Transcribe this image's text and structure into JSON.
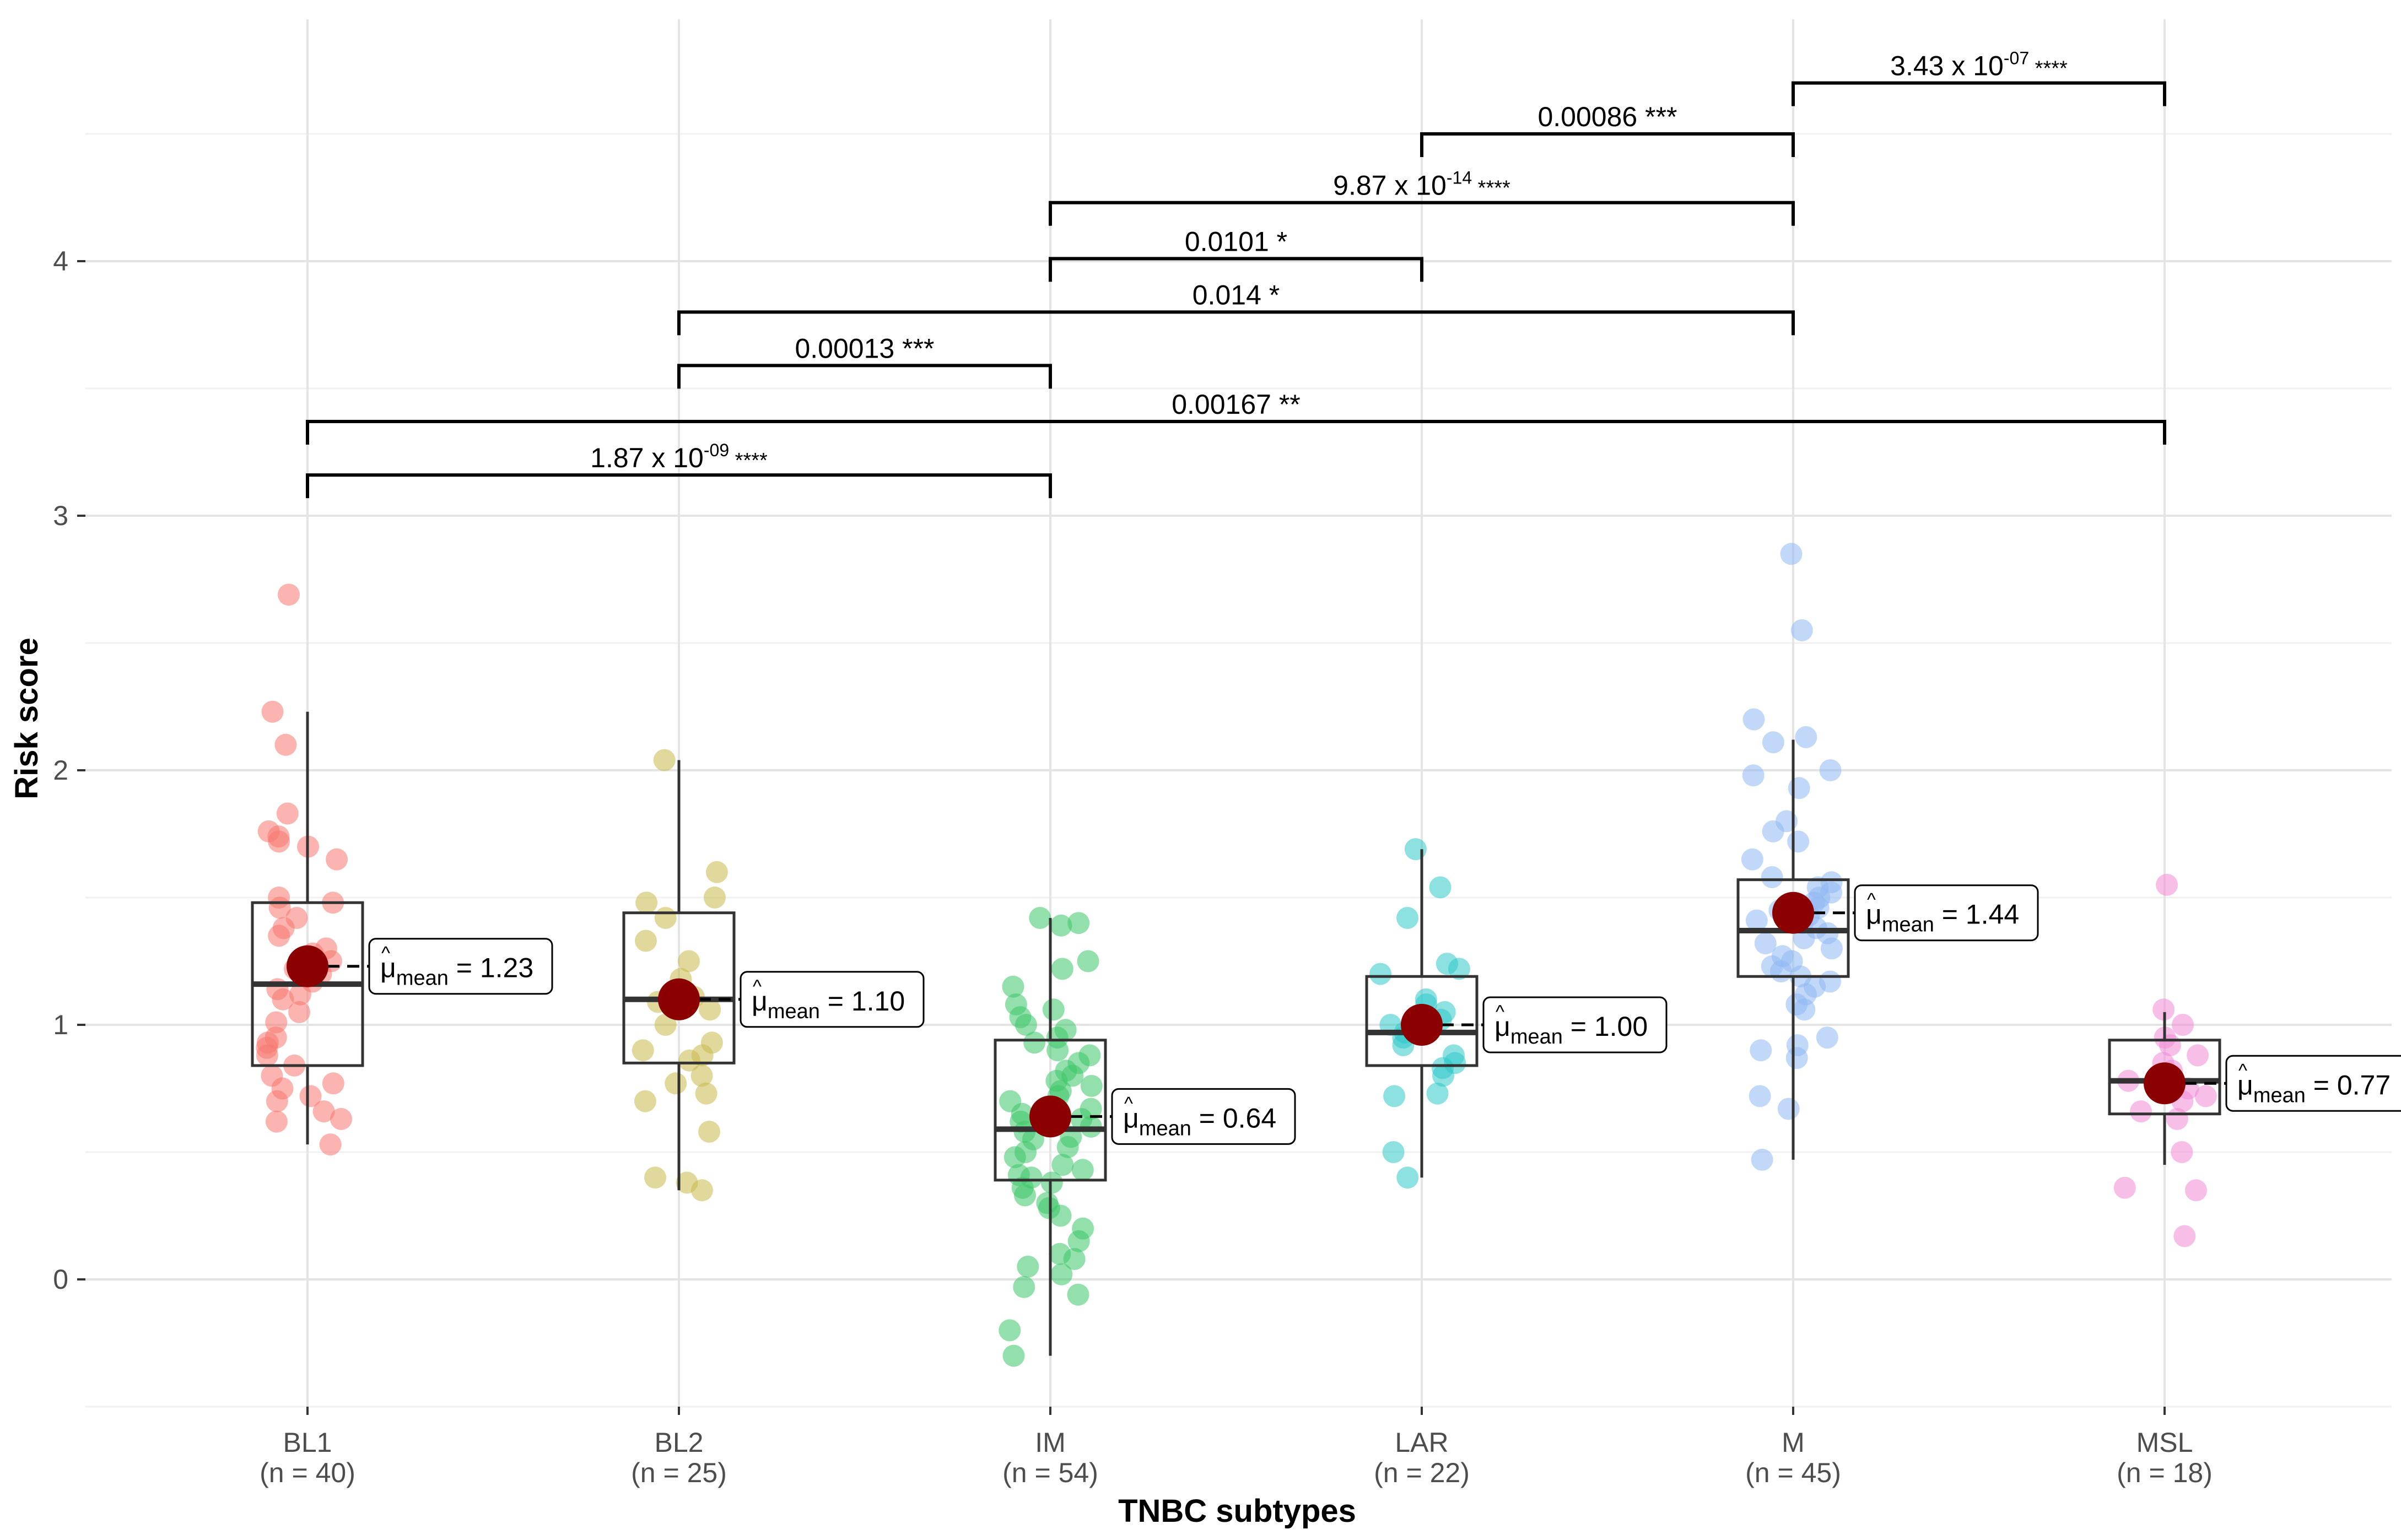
{
  "chart_data": {
    "type": "box",
    "xlabel": "TNBC subtypes",
    "ylabel": "Risk score",
    "ylim": [
      -0.5,
      4.95
    ],
    "yticks": [
      0,
      1,
      2,
      3,
      4
    ],
    "grid": true,
    "mean_prefix": "μ",
    "mean_subscript": "mean",
    "categories": [
      {
        "name": "BL1",
        "n_label": "(n = 40)",
        "color": "#f8766d",
        "box": {
          "q1": 0.84,
          "median": 1.16,
          "q3": 1.48,
          "whisker_low": 0.53,
          "whisker_high": 2.23
        },
        "mean": 1.23,
        "mean_label": "1.23",
        "points": [
          2.69,
          2.23,
          2.1,
          1.83,
          1.76,
          1.74,
          1.72,
          1.7,
          1.65,
          1.5,
          1.48,
          1.46,
          1.42,
          1.38,
          1.35,
          1.3,
          1.28,
          1.25,
          1.22,
          1.2,
          1.17,
          1.14,
          1.12,
          1.1,
          1.05,
          1.01,
          0.95,
          0.93,
          0.91,
          0.88,
          0.84,
          0.8,
          0.77,
          0.75,
          0.72,
          0.7,
          0.66,
          0.63,
          0.62,
          0.53
        ]
      },
      {
        "name": "BL2",
        "n_label": "(n = 25)",
        "color": "#c8b94a",
        "box": {
          "q1": 0.85,
          "median": 1.1,
          "q3": 1.44,
          "whisker_low": 0.35,
          "whisker_high": 2.04
        },
        "mean": 1.1,
        "mean_label": "1.10",
        "points": [
          2.04,
          1.6,
          1.5,
          1.48,
          1.42,
          1.33,
          1.25,
          1.18,
          1.13,
          1.11,
          1.09,
          1.06,
          1.0,
          0.93,
          0.9,
          0.88,
          0.86,
          0.8,
          0.77,
          0.73,
          0.7,
          0.58,
          0.4,
          0.38,
          0.35
        ]
      },
      {
        "name": "IM",
        "n_label": "(n = 54)",
        "color": "#3dc767",
        "box": {
          "q1": 0.39,
          "median": 0.59,
          "q3": 0.94,
          "whisker_low": -0.3,
          "whisker_high": 1.42
        },
        "mean": 0.64,
        "mean_label": "0.64",
        "points": [
          1.42,
          1.4,
          1.39,
          1.25,
          1.22,
          1.15,
          1.08,
          1.06,
          1.03,
          1.0,
          0.98,
          0.95,
          0.93,
          0.9,
          0.88,
          0.85,
          0.82,
          0.8,
          0.78,
          0.76,
          0.74,
          0.72,
          0.7,
          0.67,
          0.65,
          0.63,
          0.62,
          0.6,
          0.58,
          0.56,
          0.55,
          0.52,
          0.5,
          0.48,
          0.45,
          0.43,
          0.41,
          0.4,
          0.38,
          0.36,
          0.33,
          0.3,
          0.28,
          0.25,
          0.2,
          0.15,
          0.1,
          0.08,
          0.05,
          0.02,
          -0.03,
          -0.06,
          -0.2,
          -0.3
        ]
      },
      {
        "name": "LAR",
        "n_label": "(n = 22)",
        "color": "#2fc8c8",
        "box": {
          "q1": 0.84,
          "median": 0.97,
          "q3": 1.19,
          "whisker_low": 0.4,
          "whisker_high": 1.69
        },
        "mean": 1.0,
        "mean_label": "1.00",
        "points": [
          1.69,
          1.54,
          1.42,
          1.24,
          1.22,
          1.2,
          1.1,
          1.08,
          1.05,
          1.02,
          1.0,
          0.97,
          0.95,
          0.92,
          0.88,
          0.85,
          0.83,
          0.8,
          0.73,
          0.72,
          0.5,
          0.4
        ]
      },
      {
        "name": "M",
        "n_label": "(n = 45)",
        "color": "#8fb8f2",
        "box": {
          "q1": 1.19,
          "median": 1.37,
          "q3": 1.57,
          "whisker_low": 0.47,
          "whisker_high": 2.12
        },
        "mean": 1.44,
        "mean_label": "1.44",
        "points": [
          2.85,
          2.55,
          2.2,
          2.13,
          2.11,
          2.0,
          1.98,
          1.93,
          1.8,
          1.76,
          1.72,
          1.65,
          1.58,
          1.56,
          1.54,
          1.52,
          1.5,
          1.48,
          1.46,
          1.45,
          1.43,
          1.41,
          1.4,
          1.38,
          1.36,
          1.34,
          1.32,
          1.3,
          1.27,
          1.25,
          1.23,
          1.21,
          1.19,
          1.17,
          1.15,
          1.12,
          1.08,
          1.06,
          0.95,
          0.92,
          0.9,
          0.87,
          0.72,
          0.67,
          0.47
        ]
      },
      {
        "name": "MSL",
        "n_label": "(n = 18)",
        "color": "#f08ad6",
        "box": {
          "q1": 0.65,
          "median": 0.78,
          "q3": 0.94,
          "whisker_low": 0.45,
          "whisker_high": 1.05
        },
        "mean": 0.77,
        "mean_label": "0.77",
        "points": [
          1.55,
          1.06,
          1.0,
          0.95,
          0.92,
          0.88,
          0.85,
          0.82,
          0.78,
          0.75,
          0.72,
          0.7,
          0.66,
          0.63,
          0.5,
          0.36,
          0.35,
          0.17
        ]
      }
    ],
    "comparisons": [
      {
        "from": "M",
        "to": "MSL",
        "y": 4.7,
        "label": "3.43 x 10",
        "exponent": "-07",
        "stars": "****"
      },
      {
        "from": "LAR",
        "to": "M",
        "y": 4.5,
        "label": "0.00086 ***"
      },
      {
        "from": "IM",
        "to": "M",
        "y": 4.23,
        "label": "9.87 x 10",
        "exponent": "-14",
        "stars": "****"
      },
      {
        "from": "IM",
        "to": "LAR",
        "y": 4.01,
        "label": "0.0101 *"
      },
      {
        "from": "BL2",
        "to": "M",
        "y": 3.8,
        "label": "0.014 *"
      },
      {
        "from": "BL2",
        "to": "IM",
        "y": 3.59,
        "label": "0.00013 ***"
      },
      {
        "from": "BL1",
        "to": "MSL",
        "y": 3.37,
        "label": "0.00167 **"
      },
      {
        "from": "BL1",
        "to": "IM",
        "y": 3.16,
        "label": "1.87 x 10",
        "exponent": "-09",
        "stars": "****"
      }
    ]
  }
}
